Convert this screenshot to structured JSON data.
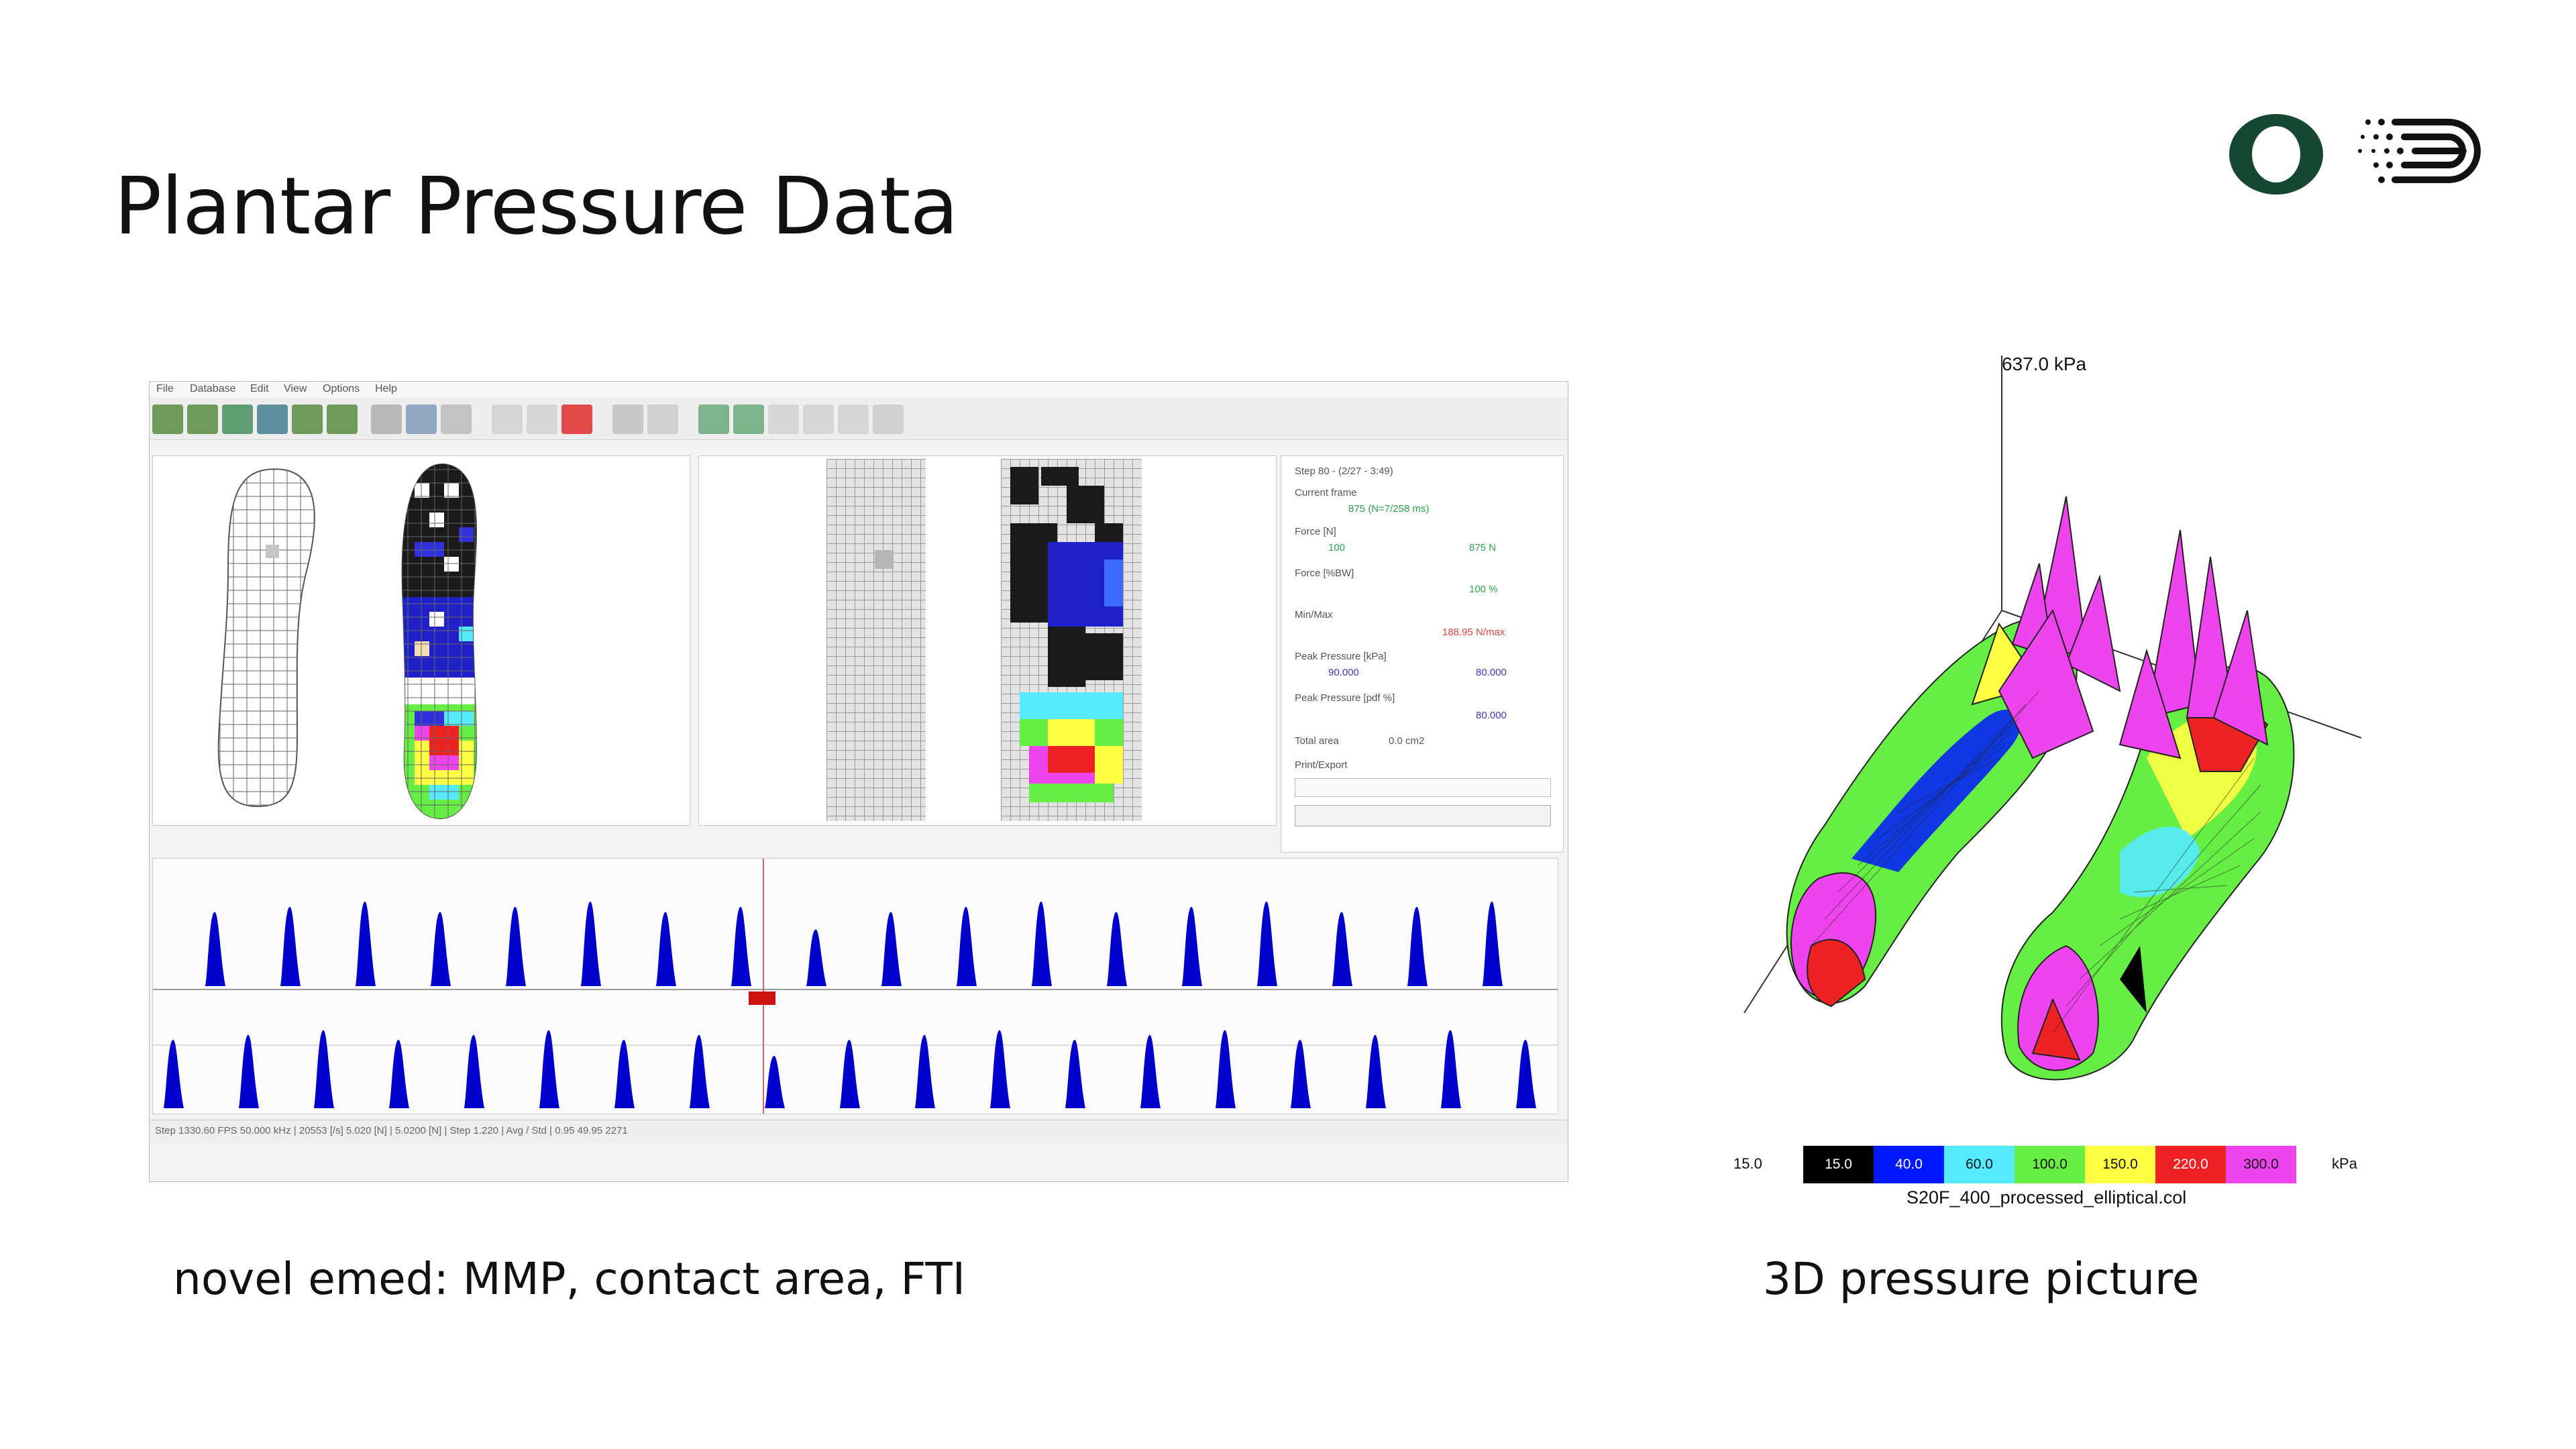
{
  "slide": {
    "title": "Plantar Pressure Data",
    "left_caption": "novel emed: MMP, contact area, FTI",
    "right_caption": "3D pressure picture"
  },
  "emed_screenshot": {
    "menu": [
      "File",
      "Database",
      "Edit",
      "View",
      "Options",
      "Help"
    ],
    "info_panel": {
      "lines": [
        "Step 80 - (2/27 - 3:49)",
        "Current frame",
        "Force [N]",
        "Force [%BW]",
        "Min/Max",
        "Peak Pressure [kPa]",
        "Peak Pressure [pdf %]",
        "Total area",
        "Print/Export"
      ],
      "values": [
        "875 (N=7/258 ms)",
        "100",
        "875 N",
        "100 %",
        "188.95 N/max",
        "90.000",
        "80.000",
        "80.000",
        "0.0 cm2"
      ]
    },
    "status_text": "Step  1330.60  FPS  50.000 kHz  |  20553 [/s]   5.020 [N]  |  5.0200 [N]  |  Step  1.220  |  Avg / Std  |  0.95  49.95  2271"
  },
  "pressure_3d": {
    "axis_max_label": "637.0 kPa",
    "legend_min": "15.0",
    "legend_unit": "kPa",
    "legend": [
      {
        "label": "15.0",
        "color": "#000000",
        "text_color": "#ffffff"
      },
      {
        "label": "40.0",
        "color": "#0018ff",
        "text_color": "#ffffff"
      },
      {
        "label": "60.0",
        "color": "#55eaff",
        "text_color": "#111111"
      },
      {
        "label": "100.0",
        "color": "#66ee44",
        "text_color": "#111111"
      },
      {
        "label": "150.0",
        "color": "#ffff44",
        "text_color": "#111111"
      },
      {
        "label": "220.0",
        "color": "#ee2222",
        "text_color": "#ffffff"
      },
      {
        "label": "300.0",
        "color": "#ee44ee",
        "text_color": "#111111"
      }
    ],
    "color_file": "S20F_400_processed_elliptical.col"
  },
  "colors": {
    "oregon_green": "#154733",
    "emed_blue": "#0000cc",
    "marker_red": "#cc1111"
  }
}
